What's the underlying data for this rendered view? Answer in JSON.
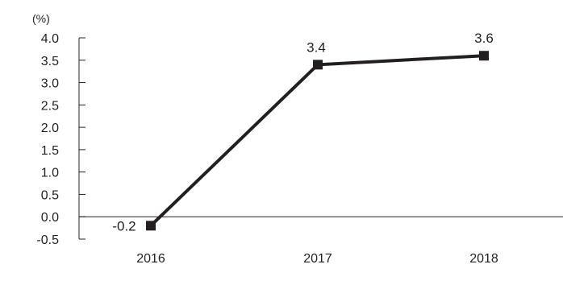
{
  "chart_data": {
    "type": "line",
    "unit_label": "(%)",
    "categories": [
      "2016",
      "2017",
      "2018"
    ],
    "series": [
      {
        "values": [
          -0.2,
          3.4,
          3.6
        ]
      }
    ],
    "data_labels": [
      "-0.2",
      "3.4",
      "3.6"
    ],
    "ylim": [
      -0.5,
      4.0
    ],
    "yticks": [
      "4.0",
      "3.5",
      "3.0",
      "2.5",
      "2.0",
      "1.5",
      "1.0",
      "0.5",
      "0.0",
      "-0.5"
    ],
    "grid": false,
    "legend": "none",
    "colors": {
      "line": "#231f20",
      "axis": "#231f20",
      "text": "#231f20"
    }
  }
}
